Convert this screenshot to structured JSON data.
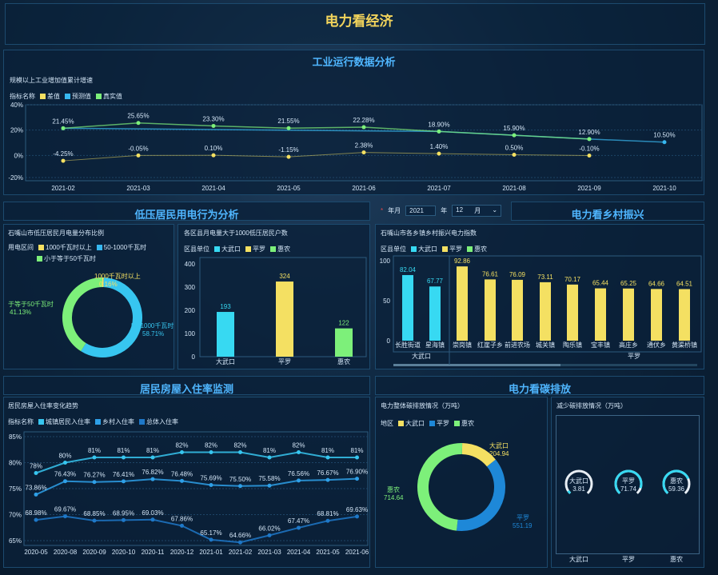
{
  "page": {
    "title": "电力看经济"
  },
  "industry": {
    "title": "工业运行数据分析",
    "subtitle": "规模以上工业增加值累计增速",
    "legend_label": "指标名称",
    "colors": {
      "diff": "#f4e062",
      "forecast": "#37b8f0",
      "actual": "#7df07a"
    }
  },
  "lowres": {
    "title": "低压居民用电行为分析",
    "pie_subtitle": "石嘴山市低压居民月电量分布比例",
    "pie_legend_label": "用电区间",
    "pie_slice_labels": [
      {
        "name": "1000千瓦时以上",
        "value": "0.16%"
      },
      {
        "name": "50-1000千瓦时",
        "value": "58.71%"
      },
      {
        "name": "小于等于50千瓦时",
        "value": "41.13%"
      }
    ],
    "pie_label_short": {
      "a": "1000千瓦时以上",
      "b": "50-1000千瓦时",
      "c": "于等于50千瓦时"
    },
    "bar_subtitle": "各区县月电量大于1000低压居民户数",
    "bar_legend_label": "区县单位"
  },
  "controls": {
    "year_label": "年月",
    "year": "2021",
    "year_unit": "年",
    "month": "12",
    "month_unit": "月",
    "star": "*"
  },
  "rural": {
    "title": "电力看乡村振兴",
    "subtitle": "石嘴山市各乡镇乡村振兴电力指数",
    "legend_label": "区县单位",
    "group1": "大武口",
    "group2": "平罗"
  },
  "housing": {
    "title": "居民房屋入住率监测",
    "subtitle": "居民房屋入住率变化趋势",
    "legend_label": "指标名称"
  },
  "carbon": {
    "title": "电力看碳排放",
    "sub1": "电力整体碳排放情况（万吨）",
    "legend_label": "地区",
    "sub2": "减少碳排放情况（万吨）"
  },
  "chart_data": [
    {
      "type": "line",
      "id": "industry",
      "categories": [
        "2021-02",
        "2021-03",
        "2021-04",
        "2021-05",
        "2021-06",
        "2021-07",
        "2021-08",
        "2021-09",
        "2021-10"
      ],
      "yticks": [
        "40%",
        "20%",
        "0%",
        "-20%"
      ],
      "ylim": [
        -20,
        40
      ],
      "series": [
        {
          "name": "差值",
          "values": [
            -4.25,
            -0.05,
            0.1,
            -1.15,
            2.38,
            1.4,
            0.5,
            -0.1,
            null
          ],
          "labels": [
            "-4.25%",
            "-0.05%",
            "0.10%",
            "-1.15%",
            "2.38%",
            "1.40%",
            "0.50%",
            "-0.10%",
            ""
          ]
        },
        {
          "name": "预测值",
          "values": [
            21.45,
            null,
            null,
            null,
            null,
            18.9,
            15.9,
            12.9,
            10.5
          ],
          "labels": [
            "21.45%",
            "",
            "",
            "",
            "",
            "18.90%",
            "15.90%",
            "12.90%",
            "10.50%"
          ]
        },
        {
          "name": "真实值",
          "values": [
            21.45,
            25.65,
            23.3,
            21.55,
            22.28,
            18.9,
            15.9,
            12.9,
            null
          ],
          "labels": [
            "",
            "25.65%",
            "23.30%",
            "21.55%",
            "22.28%",
            "",
            "",
            "",
            ""
          ]
        }
      ]
    },
    {
      "type": "pie",
      "id": "lowres_pie",
      "series": [
        {
          "name": "1000千瓦时以上",
          "value": 0.16
        },
        {
          "name": "50-1000千瓦时",
          "value": 58.71
        },
        {
          "name": "小于等于50千瓦时",
          "value": 41.13
        }
      ]
    },
    {
      "type": "bar",
      "id": "lowres_bar",
      "categories": [
        "大武口",
        "平罗",
        "惠农"
      ],
      "values": [
        193,
        324,
        122
      ],
      "yticks": [
        "400",
        "300",
        "200",
        "100",
        "0"
      ],
      "ylim": [
        0,
        400
      ],
      "series": [
        {
          "name": "大武口"
        },
        {
          "name": "平罗"
        },
        {
          "name": "惠农"
        }
      ]
    },
    {
      "type": "bar",
      "id": "rural",
      "categories": [
        "长胜街道",
        "星海镇",
        "崇岗镇",
        "红崖子乡",
        "前进农场",
        "城关镇",
        "陶乐镇",
        "宝丰镇",
        "高庄乡",
        "通伏乡",
        "黄渠桥镇"
      ],
      "values": [
        82.04,
        67.77,
        92.86,
        76.61,
        76.09,
        73.11,
        70.17,
        65.44,
        65.25,
        64.66,
        64.51
      ],
      "labels": [
        "82.04",
        "67.77",
        "92.86",
        "76.61",
        "76.09",
        "73.11",
        "70.17",
        "65.44",
        "65.25",
        "64.66",
        "64.51"
      ],
      "yticks": [
        "100",
        "50",
        "0"
      ],
      "ylim": [
        0,
        100
      ],
      "series": [
        {
          "name": "大武口"
        },
        {
          "name": "平罗"
        },
        {
          "name": "惠农"
        }
      ]
    },
    {
      "type": "line",
      "id": "housing",
      "categories": [
        "2020-05",
        "2020-08",
        "2020-09",
        "2020-10",
        "2020-11",
        "2020-12",
        "2021-01",
        "2021-02",
        "2021-03",
        "2021-04",
        "2021-05",
        "2021-06"
      ],
      "yticks": [
        "85%",
        "80%",
        "75%",
        "70%",
        "65%"
      ],
      "ylim": [
        64,
        85
      ],
      "series": [
        {
          "name": "城镇居民入住率",
          "values": [
            78,
            80,
            81,
            81,
            81,
            82,
            82,
            82,
            81,
            82,
            81,
            81
          ],
          "labels": [
            "78%",
            "80%",
            "81%",
            "81%",
            "81%",
            "82%",
            "82%",
            "82%",
            "81%",
            "82%",
            "81%",
            "81%"
          ]
        },
        {
          "name": "乡村入住率",
          "values": [
            73.86,
            76.43,
            76.27,
            76.41,
            76.82,
            76.48,
            75.69,
            75.5,
            75.58,
            76.56,
            76.67,
            76.9
          ],
          "labels": [
            "73.86%",
            "76.43%",
            "76.27%",
            "76.41%",
            "76.82%",
            "76.48%",
            "75.69%",
            "75.50%",
            "75.58%",
            "76.56%",
            "76.67%",
            "76.90%"
          ]
        },
        {
          "name": "总体入住率",
          "values": [
            68.98,
            69.67,
            68.85,
            68.95,
            69.03,
            67.86,
            65.17,
            64.66,
            66.02,
            67.47,
            68.81,
            69.63
          ],
          "labels": [
            "68.98%",
            "69.67%",
            "68.85%",
            "68.95%",
            "69.03%",
            "67.86%",
            "65.17%",
            "64.66%",
            "66.02%",
            "67.47%",
            "68.81%",
            "69.63%"
          ]
        }
      ]
    },
    {
      "type": "pie",
      "id": "carbon",
      "series": [
        {
          "name": "大武口",
          "value": 204.94
        },
        {
          "name": "平罗",
          "value": 551.19
        },
        {
          "name": "惠农",
          "value": 714.64
        }
      ]
    },
    {
      "type": "gauge",
      "id": "carbon_reduce",
      "series": [
        {
          "name": "大武口",
          "value": 3.81,
          "label": "3.81"
        },
        {
          "name": "平罗",
          "value": 71.74,
          "label": "71.74"
        },
        {
          "name": "惠农",
          "value": 59.36,
          "label": "59.36"
        }
      ]
    }
  ]
}
